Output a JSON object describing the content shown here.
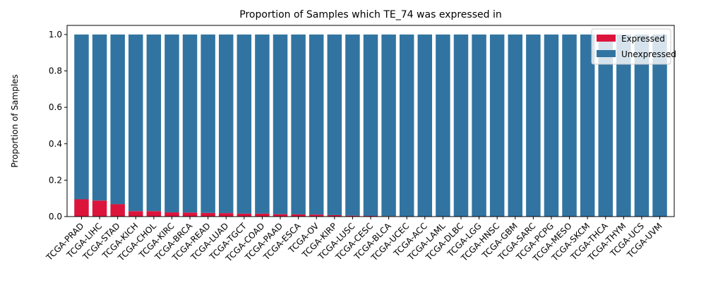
{
  "chart_data": {
    "type": "bar",
    "stacked": true,
    "title": "Proportion of Samples which TE_74 was expressed in",
    "xlabel": "",
    "ylabel": "Proportion of Samples",
    "ylim": [
      0,
      1.05
    ],
    "yticks": [
      0.0,
      0.2,
      0.4,
      0.6,
      0.8,
      1.0
    ],
    "ytick_labels": [
      "0.0",
      "0.2",
      "0.4",
      "0.6",
      "0.8",
      "1.0"
    ],
    "grid": false,
    "legend_position": "top-right",
    "categories": [
      "TCGA-PRAD",
      "TCGA-LIHC",
      "TCGA-STAD",
      "TCGA-KICH",
      "TCGA-CHOL",
      "TCGA-KIRC",
      "TCGA-BRCA",
      "TCGA-READ",
      "TCGA-LUAD",
      "TCGA-TGCT",
      "TCGA-COAD",
      "TCGA-PAAD",
      "TCGA-ESCA",
      "TCGA-OV",
      "TCGA-KIRP",
      "TCGA-LUSC",
      "TCGA-CESC",
      "TCGA-BLCA",
      "TCGA-UCEC",
      "TCGA-ACC",
      "TCGA-LAML",
      "TCGA-DLBC",
      "TCGA-LGG",
      "TCGA-HNSC",
      "TCGA-GBM",
      "TCGA-SARC",
      "TCGA-PCPG",
      "TCGA-MESO",
      "TCGA-SKCM",
      "TCGA-THCA",
      "TCGA-THYM",
      "TCGA-UCS",
      "TCGA-UVM"
    ],
    "series": [
      {
        "name": "Expressed",
        "color": "#dc143c",
        "values": [
          0.095,
          0.088,
          0.068,
          0.03,
          0.03,
          0.023,
          0.022,
          0.02,
          0.019,
          0.016,
          0.016,
          0.013,
          0.012,
          0.011,
          0.008,
          0.005,
          0.004,
          0.003,
          0.002,
          0,
          0,
          0,
          0,
          0,
          0,
          0,
          0,
          0,
          0,
          0,
          0,
          0,
          0
        ]
      },
      {
        "name": "Unexpressed",
        "color": "#3274a1",
        "values": [
          0.905,
          0.912,
          0.932,
          0.97,
          0.97,
          0.977,
          0.978,
          0.98,
          0.981,
          0.984,
          0.984,
          0.987,
          0.988,
          0.989,
          0.992,
          0.995,
          0.996,
          0.997,
          0.998,
          1,
          1,
          1,
          1,
          1,
          1,
          1,
          1,
          1,
          1,
          1,
          1,
          1,
          1
        ]
      }
    ]
  }
}
